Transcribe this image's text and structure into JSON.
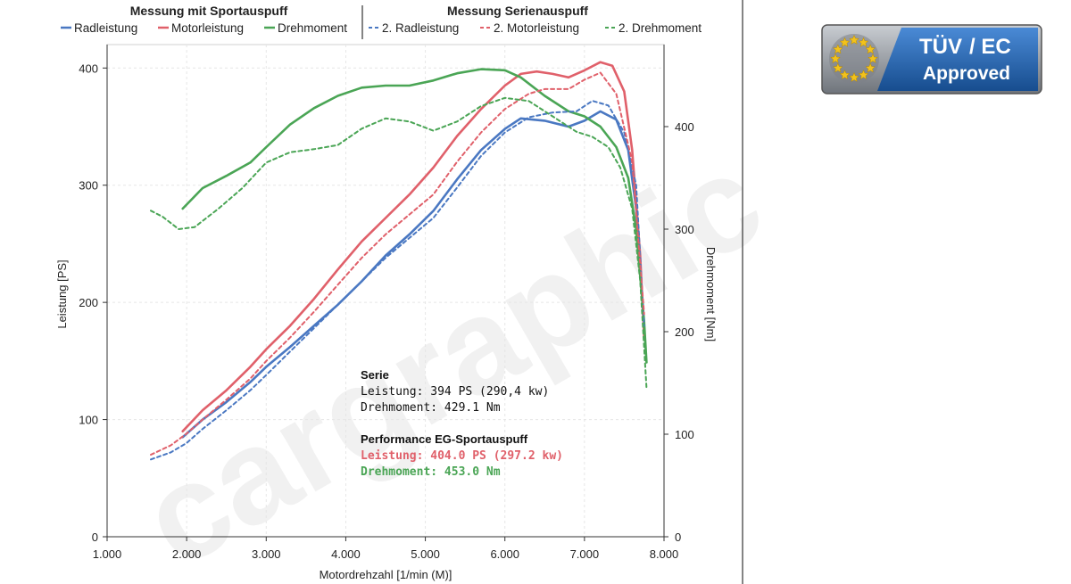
{
  "legend": {
    "group_sport": "Messung mit Sportauspuff",
    "group_serie": "Messung Serienauspuff",
    "sport_items": [
      "Radleistung",
      "Motorleistung",
      "Drehmoment"
    ],
    "serie_items": [
      "2. Radleistung",
      "2. Motorleistung",
      "2. Drehmoment"
    ]
  },
  "annotation": {
    "serie_title": "Serie",
    "serie_power": "Leistung: 394 PS (290,4 kw)",
    "serie_torque": "Drehmoment: 429.1 Nm",
    "perf_title": "Performance EG-Sportauspuff",
    "perf_power": "Leistung: 404.0 PS (297.2 kw)",
    "perf_torque": "Drehmoment: 453.0 Nm"
  },
  "badge": {
    "brand": "TÜV",
    "suffix": "/ EC",
    "line2": "Approved"
  },
  "watermark": "cargraphic",
  "colors": {
    "rad": "#4a78c2",
    "motor": "#e0606a",
    "torque": "#4aa555",
    "badge_blue": "#1f5fa8",
    "badge_gray": "#8a8f96"
  },
  "chart_data": {
    "type": "line",
    "xlabel": "Motordrehzahl [1/min (M)]",
    "ylabel": "Leistung [PS]",
    "y2label": "Drehmoment [Nm]",
    "xlim": [
      1000,
      8000
    ],
    "ylim": [
      0,
      420
    ],
    "y2lim": [
      0,
      480
    ],
    "x_ticks": [
      1000,
      2000,
      3000,
      4000,
      5000,
      6000,
      7000,
      8000
    ],
    "x_tick_labels": [
      "1.000",
      "2.000",
      "3.000",
      "4.000",
      "5.000",
      "6.000",
      "7.000",
      "8.000"
    ],
    "y_ticks": [
      0,
      100,
      200,
      300,
      400
    ],
    "y2_ticks": [
      0,
      100,
      200,
      300,
      400
    ],
    "grid": true,
    "series": [
      {
        "name": "Radleistung",
        "group": "Messung mit Sportauspuff",
        "axis": "left",
        "style": "solid",
        "color_key": "rad",
        "x": [
          1950,
          2200,
          2500,
          2800,
          3000,
          3300,
          3600,
          3900,
          4200,
          4500,
          4800,
          5100,
          5400,
          5700,
          6000,
          6200,
          6500,
          6800,
          7000,
          7200,
          7400,
          7550,
          7650,
          7750
        ],
        "y": [
          85,
          100,
          115,
          132,
          145,
          162,
          180,
          198,
          218,
          240,
          258,
          278,
          305,
          330,
          348,
          357,
          355,
          350,
          355,
          363,
          356,
          330,
          280,
          180
        ]
      },
      {
        "name": "Motorleistung",
        "group": "Messung mit Sportauspuff",
        "axis": "left",
        "style": "solid",
        "color_key": "motor",
        "x": [
          1950,
          2200,
          2500,
          2800,
          3000,
          3300,
          3600,
          3900,
          4200,
          4500,
          4800,
          5100,
          5400,
          5700,
          6000,
          6200,
          6400,
          6600,
          6800,
          7000,
          7200,
          7350,
          7500,
          7600,
          7700,
          7750
        ],
        "y": [
          90,
          108,
          125,
          145,
          160,
          180,
          203,
          228,
          252,
          272,
          292,
          315,
          342,
          365,
          385,
          395,
          397,
          395,
          392,
          398,
          405,
          402,
          380,
          330,
          240,
          170
        ]
      },
      {
        "name": "Drehmoment",
        "group": "Messung mit Sportauspuff",
        "axis": "right",
        "style": "solid",
        "color_key": "torque",
        "x": [
          1950,
          2200,
          2500,
          2800,
          3000,
          3300,
          3600,
          3900,
          4200,
          4500,
          4800,
          5100,
          5400,
          5700,
          6000,
          6200,
          6500,
          6800,
          7000,
          7200,
          7400,
          7550,
          7650,
          7750,
          7780
        ],
        "y": [
          320,
          340,
          352,
          365,
          380,
          402,
          418,
          430,
          438,
          440,
          440,
          445,
          452,
          456,
          455,
          448,
          430,
          415,
          410,
          400,
          380,
          350,
          300,
          210,
          170
        ]
      },
      {
        "name": "2. Radleistung",
        "group": "Messung Serienauspuff",
        "axis": "left",
        "style": "dashed",
        "color_key": "rad",
        "x": [
          1550,
          1800,
          2000,
          2200,
          2500,
          2800,
          3000,
          3300,
          3600,
          3900,
          4200,
          4500,
          4800,
          5100,
          5400,
          5700,
          6000,
          6300,
          6600,
          6900,
          7100,
          7300,
          7500,
          7650,
          7750
        ],
        "y": [
          66,
          72,
          80,
          92,
          108,
          125,
          138,
          158,
          178,
          198,
          218,
          238,
          255,
          272,
          298,
          325,
          345,
          358,
          362,
          363,
          372,
          368,
          345,
          300,
          180
        ]
      },
      {
        "name": "2. Motorleistung",
        "group": "Messung Serienauspuff",
        "axis": "left",
        "style": "dashed",
        "color_key": "motor",
        "x": [
          1550,
          1800,
          2000,
          2200,
          2500,
          2800,
          3000,
          3300,
          3600,
          3900,
          4200,
          4500,
          4800,
          5100,
          5400,
          5700,
          6000,
          6300,
          6500,
          6800,
          7000,
          7200,
          7400,
          7600,
          7750
        ],
        "y": [
          70,
          78,
          88,
          100,
          117,
          135,
          150,
          170,
          192,
          215,
          238,
          258,
          275,
          292,
          320,
          345,
          365,
          378,
          382,
          382,
          390,
          396,
          378,
          320,
          190
        ]
      },
      {
        "name": "2. Drehmoment",
        "group": "Messung Serienauspuff",
        "axis": "right",
        "style": "dashed",
        "color_key": "torque",
        "x": [
          1550,
          1700,
          1900,
          2100,
          2400,
          2700,
          3000,
          3300,
          3600,
          3900,
          4200,
          4500,
          4800,
          5100,
          5400,
          5700,
          6000,
          6300,
          6600,
          6900,
          7100,
          7300,
          7450,
          7600,
          7700,
          7780
        ],
        "y": [
          318,
          312,
          300,
          302,
          320,
          340,
          365,
          375,
          378,
          382,
          398,
          408,
          405,
          396,
          405,
          420,
          428,
          425,
          410,
          395,
          390,
          380,
          360,
          320,
          250,
          145
        ]
      }
    ]
  }
}
